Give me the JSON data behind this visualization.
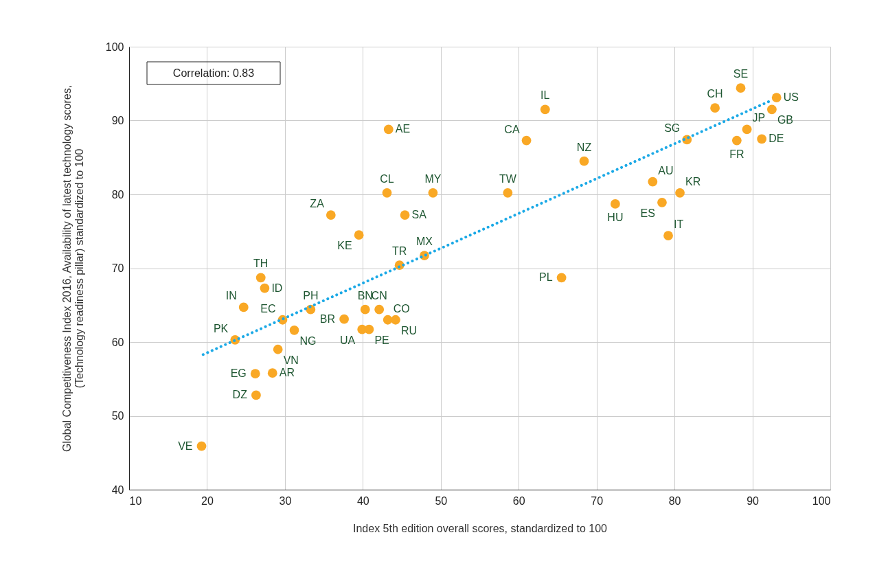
{
  "chart_data": {
    "type": "scatter",
    "xlabel": "Index 5th edition overall scores, standardized to 100",
    "ylabel": "Global Competitiveness Index 2016, Availability of latest technology scores,\n(Technology readiness pillar) standardized to 100",
    "annotations": [
      "Correlation: 0.83"
    ],
    "xlim": [
      10,
      100
    ],
    "xticks": [
      10,
      20,
      30,
      40,
      50,
      60,
      70,
      80,
      90,
      100
    ],
    "ylim": [
      40,
      100
    ],
    "yticks": [
      40,
      50,
      60,
      70,
      80,
      90,
      100
    ],
    "grid": true,
    "marker": "circle",
    "series": [
      {
        "name": "VE",
        "color": "#f9a825",
        "x": [
          19.3
        ],
        "values": [
          45.9
        ]
      },
      {
        "name": "DZ",
        "color": "#f9a825",
        "x": [
          26.3
        ],
        "values": [
          52.8
        ]
      },
      {
        "name": "EG",
        "color": "#f9a825",
        "x": [
          26.2
        ],
        "values": [
          55.7
        ]
      },
      {
        "name": "AR",
        "color": "#f9a825",
        "x": [
          28.4
        ],
        "values": [
          55.8
        ]
      },
      {
        "name": "VN",
        "color": "#f9a825",
        "x": [
          29.1
        ],
        "values": [
          59.0
        ]
      },
      {
        "name": "PK",
        "color": "#f9a825",
        "x": [
          23.6
        ],
        "values": [
          60.3
        ]
      },
      {
        "name": "IN",
        "color": "#f9a825",
        "x": [
          24.7
        ],
        "values": [
          64.7
        ]
      },
      {
        "name": "TH",
        "color": "#f9a825",
        "x": [
          26.9
        ],
        "values": [
          68.7
        ]
      },
      {
        "name": "ID",
        "color": "#f9a825",
        "x": [
          27.4
        ],
        "values": [
          67.3
        ]
      },
      {
        "name": "EC",
        "color": "#f9a825",
        "x": [
          29.7
        ],
        "values": [
          63.0
        ]
      },
      {
        "name": "NG",
        "color": "#f9a825",
        "x": [
          31.2
        ],
        "values": [
          61.6
        ]
      },
      {
        "name": "PH",
        "color": "#f9a825",
        "x": [
          33.3
        ],
        "values": [
          64.4
        ]
      },
      {
        "name": "BR",
        "color": "#f9a825",
        "x": [
          37.6
        ],
        "values": [
          63.1
        ]
      },
      {
        "name": "BN",
        "color": "#f9a825",
        "x": [
          40.3
        ],
        "values": [
          64.4
        ]
      },
      {
        "name": "CN",
        "color": "#f9a825",
        "x": [
          42.1
        ],
        "values": [
          64.4
        ]
      },
      {
        "name": "CO",
        "color": "#f9a825",
        "x": [
          43.2
        ],
        "values": [
          63.0
        ]
      },
      {
        "name": "RU",
        "color": "#f9a825",
        "x": [
          44.2
        ],
        "values": [
          63.0
        ]
      },
      {
        "name": "UA",
        "color": "#f9a825",
        "x": [
          39.9
        ],
        "values": [
          61.7
        ]
      },
      {
        "name": "PE",
        "color": "#f9a825",
        "x": [
          40.8
        ],
        "values": [
          61.7
        ]
      },
      {
        "name": "TR",
        "color": "#f9a825",
        "x": [
          44.7
        ],
        "values": [
          70.4
        ]
      },
      {
        "name": "MX",
        "color": "#f9a825",
        "x": [
          47.9
        ],
        "values": [
          71.7
        ]
      },
      {
        "name": "KE",
        "color": "#f9a825",
        "x": [
          39.5
        ],
        "values": [
          74.5
        ]
      },
      {
        "name": "ZA",
        "color": "#f9a825",
        "x": [
          35.9
        ],
        "values": [
          77.2
        ]
      },
      {
        "name": "SA",
        "color": "#f9a825",
        "x": [
          45.4
        ],
        "values": [
          77.2
        ]
      },
      {
        "name": "CL",
        "color": "#f9a825",
        "x": [
          43.1
        ],
        "values": [
          80.2
        ]
      },
      {
        "name": "MY",
        "color": "#f9a825",
        "x": [
          49.0
        ],
        "values": [
          80.2
        ]
      },
      {
        "name": "AE",
        "color": "#f9a825",
        "x": [
          43.3
        ],
        "values": [
          88.8
        ]
      },
      {
        "name": "TW",
        "color": "#f9a825",
        "x": [
          58.6
        ],
        "values": [
          80.2
        ]
      },
      {
        "name": "CA",
        "color": "#f9a825",
        "x": [
          61.0
        ],
        "values": [
          87.3
        ]
      },
      {
        "name": "IL",
        "color": "#f9a825",
        "x": [
          63.4
        ],
        "values": [
          91.5
        ]
      },
      {
        "name": "NZ",
        "color": "#f9a825",
        "x": [
          68.4
        ],
        "values": [
          84.5
        ]
      },
      {
        "name": "PL",
        "color": "#f9a825",
        "x": [
          65.5
        ],
        "values": [
          68.7
        ]
      },
      {
        "name": "HU",
        "color": "#f9a825",
        "x": [
          72.4
        ],
        "values": [
          78.7
        ]
      },
      {
        "name": "AU",
        "color": "#f9a825",
        "x": [
          77.2
        ],
        "values": [
          81.7
        ]
      },
      {
        "name": "ES",
        "color": "#f9a825",
        "x": [
          78.4
        ],
        "values": [
          78.9
        ]
      },
      {
        "name": "KR",
        "color": "#f9a825",
        "x": [
          80.7
        ],
        "values": [
          80.2
        ]
      },
      {
        "name": "IT",
        "color": "#f9a825",
        "x": [
          79.2
        ],
        "values": [
          74.4
        ]
      },
      {
        "name": "SG",
        "color": "#f9a825",
        "x": [
          81.6
        ],
        "values": [
          87.4
        ]
      },
      {
        "name": "CH",
        "color": "#f9a825",
        "x": [
          85.2
        ],
        "values": [
          91.7
        ]
      },
      {
        "name": "SE",
        "color": "#f9a825",
        "x": [
          88.5
        ],
        "values": [
          94.4
        ]
      },
      {
        "name": "FR",
        "color": "#f9a825",
        "x": [
          88.0
        ],
        "values": [
          87.3
        ]
      },
      {
        "name": "JP",
        "color": "#f9a825",
        "x": [
          89.3
        ],
        "values": [
          88.8
        ]
      },
      {
        "name": "DE",
        "color": "#f9a825",
        "x": [
          91.2
        ],
        "values": [
          87.5
        ]
      },
      {
        "name": "GB",
        "color": "#f9a825",
        "x": [
          92.5
        ],
        "values": [
          91.5
        ]
      },
      {
        "name": "US",
        "color": "#f9a825",
        "x": [
          93.1
        ],
        "values": [
          93.1
        ]
      },
      {
        "type": "line",
        "color": "#1ba9e6",
        "line_style": "dotted",
        "marker": "none",
        "x": [
          19.5,
          92.6
        ],
        "values": [
          58.3,
          92.8
        ]
      }
    ]
  }
}
